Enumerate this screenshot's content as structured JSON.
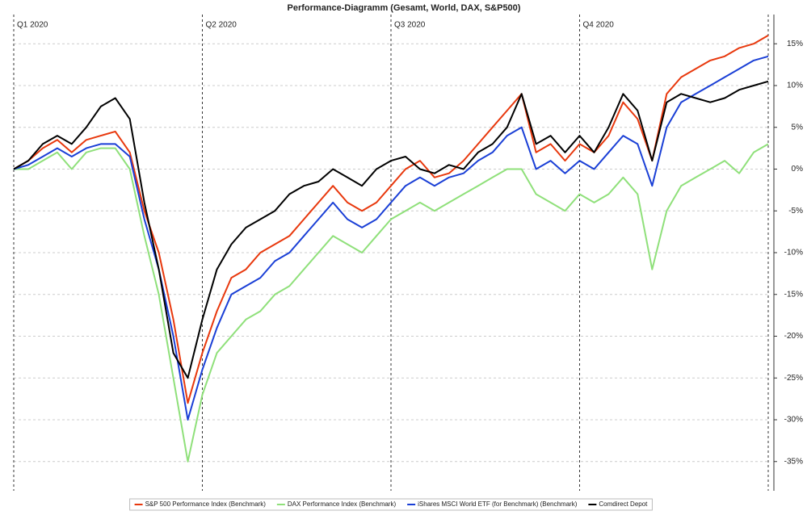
{
  "chart_data": {
    "type": "line",
    "title": "Performance-Diagramm (Gesamt, World, DAX, S&P500)",
    "categories": [
      "Q1 2020",
      null,
      null,
      null,
      null,
      null,
      null,
      null,
      null,
      null,
      null,
      null,
      null,
      "Q2 2020",
      null,
      null,
      null,
      null,
      null,
      null,
      null,
      null,
      null,
      null,
      null,
      null,
      "Q3 2020",
      null,
      null,
      null,
      null,
      null,
      null,
      null,
      null,
      null,
      null,
      null,
      null,
      "Q4 2020",
      null,
      null,
      null,
      null,
      null,
      null,
      null,
      null,
      null,
      null,
      null,
      null,
      null
    ],
    "series": [
      {
        "name": "S&P 500 Performance Index (Benchmark)",
        "color": "#e8380d",
        "values": [
          0,
          1,
          2.5,
          3.5,
          2,
          3.5,
          4,
          4.5,
          2,
          -5,
          -10,
          -18,
          -28,
          -22,
          -17,
          -13,
          -12,
          -10,
          -9,
          -8,
          -6,
          -4,
          -2,
          -4,
          -5,
          -4,
          -2,
          0,
          1,
          -1,
          -0.5,
          1,
          3,
          5,
          7,
          9,
          2,
          3,
          1,
          3,
          2,
          4,
          8,
          6,
          1,
          9,
          11,
          12,
          13,
          13.5,
          14.5,
          15,
          16
        ]
      },
      {
        "name": "DAX Performance Index (Benchmark)",
        "color": "#8fe07a",
        "values": [
          0,
          0,
          1,
          2,
          0,
          2,
          2.5,
          2.5,
          0,
          -8,
          -15,
          -25,
          -35,
          -27,
          -22,
          -20,
          -18,
          -17,
          -15,
          -14,
          -12,
          -10,
          -8,
          -9,
          -10,
          -8,
          -6,
          -5,
          -4,
          -5,
          -4,
          -3,
          -2,
          -1,
          0,
          0,
          -3,
          -4,
          -5,
          -3,
          -4,
          -3,
          -1,
          -3,
          -12,
          -5,
          -2,
          -1,
          0,
          1,
          -0.5,
          2,
          3
        ]
      },
      {
        "name": "iShares MSCI World ETF (for Benchmark) (Benchmark)",
        "color": "#1a3fd6",
        "values": [
          0,
          0.5,
          1.5,
          2.5,
          1.5,
          2.5,
          3,
          3,
          1.5,
          -6,
          -12,
          -20,
          -30,
          -24,
          -19,
          -15,
          -14,
          -13,
          -11,
          -10,
          -8,
          -6,
          -4,
          -6,
          -7,
          -6,
          -4,
          -2,
          -1,
          -2,
          -1,
          -0.5,
          1,
          2,
          4,
          5,
          0,
          1,
          -0.5,
          1,
          0,
          2,
          4,
          3,
          -2,
          5,
          8,
          9,
          10,
          11,
          12,
          13,
          13.5
        ]
      },
      {
        "name": "Comdirect Depot",
        "color": "#000000",
        "values": [
          0,
          1,
          3,
          4,
          3,
          5,
          7.5,
          8.5,
          6,
          -4,
          -12,
          -22,
          -25,
          -18,
          -12,
          -9,
          -7,
          -6,
          -5,
          -3,
          -2,
          -1.5,
          0,
          -1,
          -2,
          0,
          1,
          1.5,
          0,
          -0.5,
          0.5,
          0,
          2,
          3,
          5,
          9,
          3,
          4,
          2,
          4,
          2,
          5,
          9,
          7,
          1,
          8,
          9,
          8.5,
          8,
          8.5,
          9.5,
          10,
          10.5
        ]
      }
    ],
    "ylim": [
      -38.5,
      18.5
    ],
    "yticks": [
      {
        "value": -35,
        "label": "-35%"
      },
      {
        "value": -30,
        "label": "-30%"
      },
      {
        "value": -25,
        "label": "-25%"
      },
      {
        "value": -20,
        "label": "-20%"
      },
      {
        "value": -15,
        "label": "-15%"
      },
      {
        "value": -10,
        "label": "-10%"
      },
      {
        "value": -5,
        "label": "-5%"
      },
      {
        "value": 0,
        "label": "0%"
      },
      {
        "value": 5,
        "label": "5%"
      },
      {
        "value": 10,
        "label": "10%"
      },
      {
        "value": 15,
        "label": "15%"
      }
    ],
    "grid": true
  }
}
